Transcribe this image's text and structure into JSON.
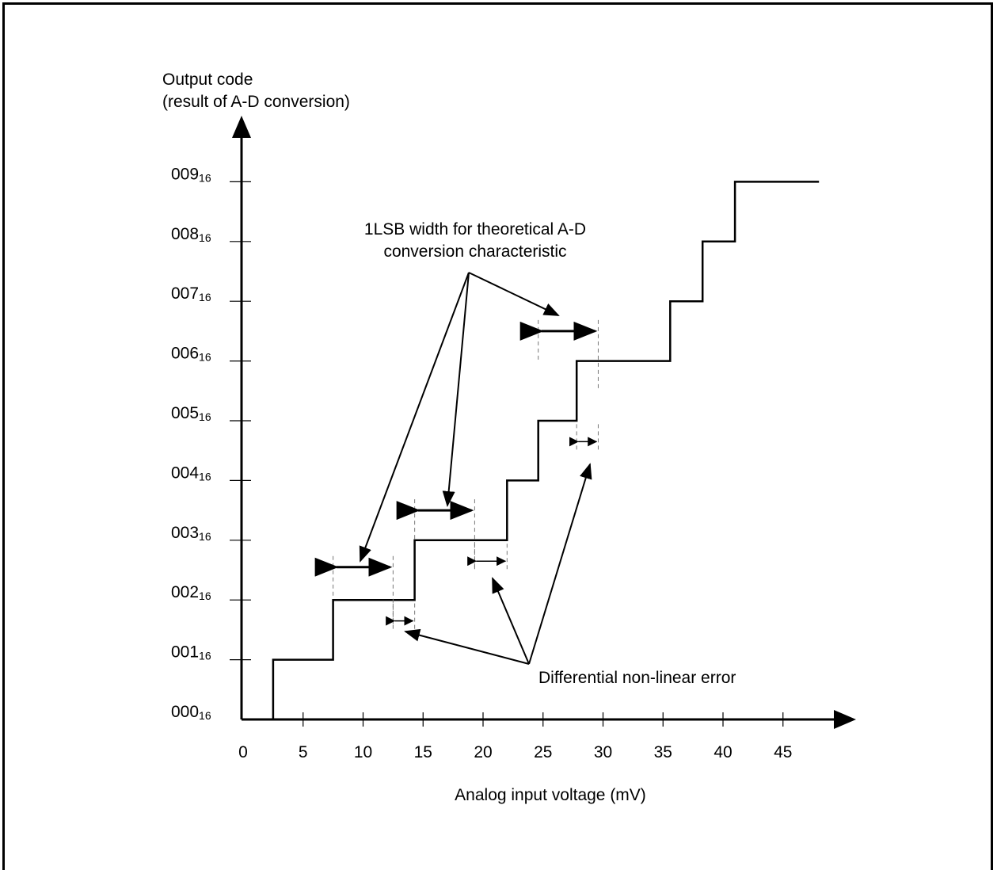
{
  "chart_data": {
    "type": "line",
    "ylabel_line1": "Output code",
    "ylabel_line2": "(result of A-D conversion)",
    "xlabel": "Analog input voltage (mV)",
    "x_ticks": [
      0,
      5,
      10,
      15,
      20,
      25,
      30,
      35,
      40,
      45
    ],
    "y_ticks": [
      {
        "main": "000",
        "sub": "16"
      },
      {
        "main": "001",
        "sub": "16"
      },
      {
        "main": "002",
        "sub": "16"
      },
      {
        "main": "003",
        "sub": "16"
      },
      {
        "main": "004",
        "sub": "16"
      },
      {
        "main": "005",
        "sub": "16"
      },
      {
        "main": "006",
        "sub": "16"
      },
      {
        "main": "007",
        "sub": "16"
      },
      {
        "main": "008",
        "sub": "16"
      },
      {
        "main": "009",
        "sub": "16"
      }
    ],
    "xlim": [
      0,
      50
    ],
    "ylim": [
      0,
      9
    ],
    "steps": [
      {
        "x": 2.5,
        "code": 0
      },
      {
        "x": 2.5,
        "code": 1
      },
      {
        "x": 7.5,
        "code": 1
      },
      {
        "x": 7.5,
        "code": 2
      },
      {
        "x": 14.3,
        "code": 2
      },
      {
        "x": 14.3,
        "code": 3
      },
      {
        "x": 22.0,
        "code": 3
      },
      {
        "x": 22.0,
        "code": 4
      },
      {
        "x": 24.6,
        "code": 4
      },
      {
        "x": 24.6,
        "code": 5
      },
      {
        "x": 27.8,
        "code": 5
      },
      {
        "x": 27.8,
        "code": 6
      },
      {
        "x": 35.6,
        "code": 6
      },
      {
        "x": 35.6,
        "code": 7
      },
      {
        "x": 38.3,
        "code": 7
      },
      {
        "x": 38.3,
        "code": 8
      },
      {
        "x": 41.0,
        "code": 8
      },
      {
        "x": 41.0,
        "code": 9
      },
      {
        "x": 48.0,
        "code": 9
      }
    ],
    "lsb_markers": [
      {
        "x1": 7.5,
        "x2": 12.5,
        "code": 2.55
      },
      {
        "x1": 14.3,
        "x2": 19.3,
        "code": 3.5
      },
      {
        "x1": 24.6,
        "x2": 29.6,
        "code": 6.5
      }
    ],
    "dnl_markers": [
      {
        "x1": 12.5,
        "x2": 14.3,
        "code": 1.65
      },
      {
        "x1": 19.3,
        "x2": 22.0,
        "code": 2.65
      },
      {
        "x1": 27.8,
        "x2": 29.6,
        "code": 4.65
      }
    ],
    "annotations": {
      "lsb_line1": "1LSB width for theoretical A-D",
      "lsb_line2": "conversion characteristic",
      "dnl": "Differential non-linear error"
    }
  }
}
